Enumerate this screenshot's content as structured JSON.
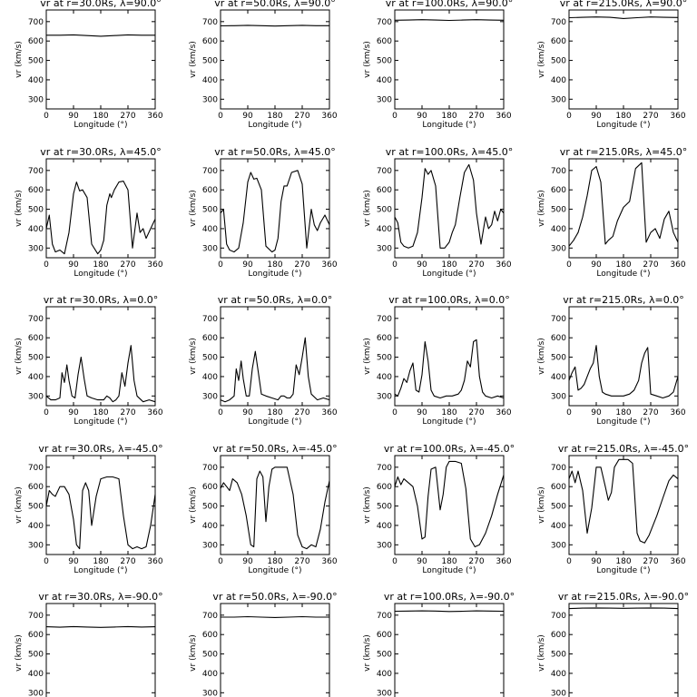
{
  "figure": {
    "xlabel": "Longitude (°)",
    "ylabel": "vr (km/s)",
    "xticks": [
      0,
      90,
      180,
      270,
      360
    ],
    "yticks": [
      300,
      400,
      500,
      600,
      700
    ],
    "xlim": [
      0,
      360
    ],
    "ylim": [
      250,
      760
    ]
  },
  "chart_data": [
    {
      "type": "line",
      "title": "vr at r=30.0Rs, λ=90.0°",
      "x": [
        0,
        45,
        90,
        135,
        180,
        225,
        270,
        315,
        360
      ],
      "y": [
        630,
        630,
        632,
        628,
        625,
        628,
        632,
        630,
        630
      ]
    },
    {
      "type": "line",
      "title": "vr at r=50.0Rs, λ=90.0°",
      "x": [
        0,
        45,
        90,
        135,
        180,
        225,
        270,
        315,
        360
      ],
      "y": [
        678,
        679,
        681,
        679,
        677,
        679,
        681,
        679,
        679
      ]
    },
    {
      "type": "line",
      "title": "vr at r=100.0Rs, λ=90.0°",
      "x": [
        0,
        45,
        90,
        135,
        180,
        225,
        270,
        315,
        360
      ],
      "y": [
        707,
        708,
        710,
        708,
        706,
        708,
        710,
        708,
        707
      ]
    },
    {
      "type": "line",
      "title": "vr at r=215.0Rs, λ=90.0°",
      "x": [
        0,
        45,
        90,
        135,
        180,
        225,
        270,
        315,
        360
      ],
      "y": [
        720,
        722,
        724,
        722,
        716,
        720,
        724,
        722,
        721
      ]
    },
    {
      "type": "line",
      "title": "vr at r=30.0Rs, λ=45.0°",
      "x": [
        0,
        10,
        20,
        30,
        45,
        60,
        75,
        90,
        100,
        110,
        120,
        135,
        150,
        170,
        180,
        190,
        200,
        210,
        215,
        225,
        240,
        255,
        270,
        285,
        300,
        310,
        320,
        330,
        345,
        360
      ],
      "y": [
        400,
        470,
        320,
        280,
        290,
        270,
        380,
        580,
        640,
        595,
        600,
        560,
        320,
        270,
        290,
        340,
        520,
        580,
        560,
        600,
        640,
        645,
        600,
        300,
        480,
        380,
        400,
        350,
        400,
        450
      ]
    },
    {
      "type": "line",
      "title": "vr at r=50.0Rs, λ=45.0°",
      "x": [
        0,
        10,
        20,
        30,
        45,
        60,
        75,
        90,
        100,
        110,
        120,
        135,
        150,
        170,
        180,
        190,
        200,
        210,
        220,
        235,
        255,
        270,
        285,
        300,
        310,
        320,
        330,
        345,
        360
      ],
      "y": [
        480,
        500,
        320,
        290,
        280,
        300,
        430,
        640,
        690,
        655,
        660,
        600,
        310,
        280,
        290,
        350,
        540,
        620,
        620,
        690,
        700,
        630,
        300,
        500,
        420,
        390,
        430,
        470,
        420
      ]
    },
    {
      "type": "line",
      "title": "vr at r=100.0Rs, λ=45.0°",
      "x": [
        0,
        10,
        20,
        30,
        45,
        60,
        75,
        90,
        100,
        110,
        120,
        135,
        150,
        165,
        180,
        190,
        200,
        215,
        230,
        245,
        260,
        270,
        285,
        300,
        310,
        320,
        330,
        340,
        350,
        360
      ],
      "y": [
        460,
        430,
        330,
        310,
        300,
        310,
        380,
        560,
        710,
        680,
        700,
        620,
        300,
        300,
        330,
        380,
        420,
        560,
        690,
        730,
        650,
        480,
        320,
        460,
        400,
        420,
        490,
        440,
        500,
        480
      ]
    },
    {
      "type": "line",
      "title": "vr at r=215.0Rs, λ=45.0°",
      "x": [
        0,
        15,
        30,
        45,
        60,
        75,
        90,
        105,
        120,
        130,
        145,
        160,
        180,
        200,
        220,
        240,
        255,
        270,
        285,
        300,
        315,
        330,
        345,
        360
      ],
      "y": [
        310,
        340,
        380,
        460,
        570,
        700,
        720,
        640,
        320,
        340,
        360,
        440,
        510,
        540,
        710,
        740,
        330,
        380,
        400,
        350,
        450,
        490,
        380,
        330
      ]
    },
    {
      "type": "line",
      "title": "vr at r=30.0Rs, λ=0.0°",
      "x": [
        0,
        15,
        30,
        45,
        52,
        60,
        68,
        75,
        85,
        95,
        105,
        115,
        125,
        135,
        150,
        170,
        190,
        200,
        210,
        220,
        230,
        240,
        250,
        260,
        270,
        280,
        290,
        300,
        320,
        340,
        360
      ],
      "y": [
        300,
        280,
        280,
        290,
        420,
        370,
        460,
        380,
        300,
        290,
        410,
        500,
        390,
        300,
        290,
        280,
        280,
        300,
        290,
        270,
        280,
        300,
        420,
        350,
        470,
        560,
        380,
        300,
        270,
        280,
        270
      ]
    },
    {
      "type": "line",
      "title": "vr at r=50.0Rs, λ=0.0°",
      "x": [
        0,
        15,
        30,
        45,
        52,
        60,
        68,
        75,
        85,
        95,
        105,
        115,
        125,
        135,
        150,
        170,
        190,
        200,
        210,
        220,
        230,
        240,
        250,
        260,
        270,
        280,
        290,
        300,
        320,
        340,
        360
      ],
      "y": [
        280,
        270,
        280,
        300,
        440,
        380,
        480,
        390,
        300,
        300,
        440,
        530,
        420,
        310,
        300,
        290,
        280,
        300,
        300,
        290,
        290,
        310,
        460,
        410,
        500,
        600,
        400,
        310,
        280,
        290,
        280
      ]
    },
    {
      "type": "line",
      "title": "vr at r=100.0Rs, λ=0.0°",
      "x": [
        0,
        10,
        20,
        30,
        40,
        50,
        60,
        70,
        80,
        90,
        100,
        110,
        120,
        130,
        150,
        170,
        190,
        210,
        220,
        230,
        240,
        250,
        260,
        270,
        280,
        290,
        300,
        320,
        340,
        360
      ],
      "y": [
        310,
        300,
        340,
        390,
        370,
        430,
        470,
        330,
        320,
        410,
        580,
        480,
        330,
        300,
        290,
        300,
        300,
        310,
        330,
        380,
        480,
        450,
        580,
        590,
        400,
        320,
        300,
        290,
        300,
        290
      ]
    },
    {
      "type": "line",
      "title": "vr at r=215.0Rs, λ=0.0°",
      "x": [
        0,
        10,
        20,
        30,
        40,
        50,
        60,
        70,
        80,
        90,
        100,
        110,
        120,
        140,
        160,
        180,
        200,
        215,
        230,
        240,
        250,
        260,
        270,
        290,
        310,
        330,
        345,
        360
      ],
      "y": [
        380,
        420,
        450,
        330,
        340,
        360,
        400,
        440,
        470,
        560,
        400,
        320,
        310,
        300,
        300,
        300,
        310,
        330,
        380,
        470,
        520,
        550,
        310,
        300,
        290,
        300,
        320,
        400
      ]
    },
    {
      "type": "line",
      "title": "vr at r=30.0Rs, λ=-45.0°",
      "x": [
        0,
        10,
        20,
        30,
        45,
        60,
        75,
        90,
        100,
        110,
        120,
        130,
        140,
        150,
        165,
        180,
        200,
        220,
        240,
        255,
        270,
        285,
        300,
        315,
        330,
        345,
        360
      ],
      "y": [
        500,
        580,
        560,
        550,
        600,
        600,
        560,
        430,
        300,
        280,
        580,
        620,
        580,
        400,
        550,
        640,
        650,
        650,
        640,
        450,
        300,
        280,
        290,
        280,
        290,
        400,
        560
      ]
    },
    {
      "type": "line",
      "title": "vr at r=50.0Rs, λ=-45.0°",
      "x": [
        0,
        10,
        20,
        30,
        40,
        55,
        70,
        85,
        100,
        110,
        120,
        130,
        140,
        150,
        160,
        170,
        180,
        200,
        220,
        240,
        255,
        270,
        285,
        300,
        315,
        330,
        345,
        360
      ],
      "y": [
        590,
        620,
        600,
        580,
        640,
        620,
        560,
        450,
        300,
        290,
        640,
        680,
        650,
        420,
        600,
        690,
        700,
        700,
        700,
        560,
        350,
        290,
        280,
        300,
        290,
        380,
        520,
        630
      ]
    },
    {
      "type": "line",
      "title": "vr at r=100.0Rs, λ=-45.0°",
      "x": [
        0,
        10,
        20,
        30,
        45,
        60,
        75,
        90,
        100,
        110,
        120,
        135,
        150,
        160,
        170,
        180,
        200,
        220,
        235,
        250,
        265,
        280,
        300,
        320,
        340,
        360
      ],
      "y": [
        600,
        650,
        610,
        640,
        620,
        600,
        500,
        330,
        340,
        550,
        690,
        700,
        480,
        560,
        700,
        730,
        730,
        720,
        590,
        330,
        290,
        300,
        360,
        450,
        560,
        660
      ]
    },
    {
      "type": "line",
      "title": "vr at r=215.0Rs, λ=-45.0°",
      "x": [
        0,
        10,
        20,
        30,
        45,
        60,
        75,
        90,
        105,
        120,
        130,
        140,
        150,
        165,
        180,
        195,
        210,
        215,
        225,
        235,
        250,
        265,
        290,
        310,
        330,
        345,
        360
      ],
      "y": [
        640,
        680,
        620,
        680,
        580,
        360,
        490,
        700,
        700,
        600,
        530,
        570,
        700,
        740,
        740,
        740,
        720,
        600,
        360,
        320,
        310,
        350,
        450,
        540,
        630,
        660,
        640
      ]
    },
    {
      "type": "line",
      "title": "vr at r=30.0Rs, λ=-90.0°",
      "x": [
        0,
        45,
        90,
        135,
        180,
        225,
        270,
        315,
        360
      ],
      "y": [
        640,
        638,
        641,
        639,
        637,
        639,
        641,
        639,
        640
      ]
    },
    {
      "type": "line",
      "title": "vr at r=50.0Rs, λ=-90.0°",
      "x": [
        0,
        45,
        90,
        135,
        180,
        225,
        270,
        315,
        360
      ],
      "y": [
        690,
        690,
        692,
        690,
        688,
        690,
        692,
        690,
        690
      ]
    },
    {
      "type": "line",
      "title": "vr at r=100.0Rs, λ=-90.0°",
      "x": [
        0,
        45,
        90,
        135,
        180,
        225,
        270,
        315,
        360
      ],
      "y": [
        720,
        721,
        722,
        721,
        719,
        720,
        722,
        721,
        720
      ]
    },
    {
      "type": "line",
      "title": "vr at r=215.0Rs, λ=-90.0°",
      "x": [
        0,
        45,
        90,
        135,
        180,
        225,
        270,
        315,
        360
      ],
      "y": [
        734,
        736,
        737,
        736,
        735,
        736,
        737,
        736,
        734
      ]
    }
  ]
}
